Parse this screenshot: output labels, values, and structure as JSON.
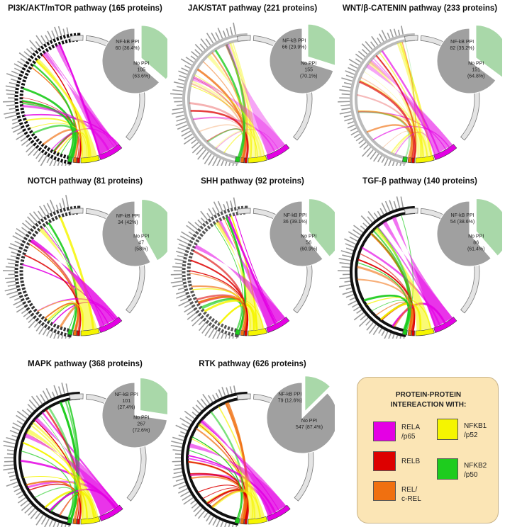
{
  "colors": {
    "RELA": "#e400e4",
    "RELB": "#dd0000",
    "REL": "#f07010",
    "NFKB1": "#f5f500",
    "NFKB2": "#1ecc1e",
    "nfkb_slice": "#a9d8a9",
    "noppi_slice": "#a0a0a0"
  },
  "panels": [
    {
      "title": "PI3K/AKT/mTOR pathway (165 proteins)",
      "ppi_label": "NF-kB PPI",
      "ppi_value": "60 (36.4%)",
      "no_label": "No PPI",
      "no_count": "105",
      "no_pct": "(63.6%)",
      "ppi_fraction": 0.364
    },
    {
      "title": "JAK/STAT pathway (221 proteins)",
      "ppi_label": "NF-kB PPI",
      "ppi_value": "66 (29.9%)",
      "no_label": "No PPI",
      "no_count": "155",
      "no_pct": "(70.1%)",
      "ppi_fraction": 0.299
    },
    {
      "title": "WNT/β-CATENIN pathway (233 proteins)",
      "ppi_label": "NF-kB PPI",
      "ppi_value": "82 (35.2%)",
      "no_label": "No PPI",
      "no_count": "151",
      "no_pct": "(64.8%)",
      "ppi_fraction": 0.352
    },
    {
      "title": "NOTCH pathway (81 proteins)",
      "ppi_label": "NF-kB PPI",
      "ppi_value": "34 (42%)",
      "no_label": "No PPI",
      "no_count": "47",
      "no_pct": "(58%)",
      "ppi_fraction": 0.42
    },
    {
      "title": "SHH pathway (92 proteins)",
      "ppi_label": "NF-kB PPI",
      "ppi_value": "36 (39.1%)",
      "no_label": "No PPI",
      "no_count": "56",
      "no_pct": "(60.9%)",
      "ppi_fraction": 0.391
    },
    {
      "title": "TGF-β pathway (140 proteins)",
      "ppi_label": "NF-kB PPI",
      "ppi_value": "54 (38.6%)",
      "no_label": "No PPI",
      "no_count": "86",
      "no_pct": "(61.4%)",
      "ppi_fraction": 0.386
    },
    {
      "title": "MAPK pathway (368 proteins)",
      "ppi_label": "NF-kB PPI",
      "ppi_value": "101",
      "ppi_value2": "(27.4%)",
      "no_label": "No PPI",
      "no_count": "267",
      "no_pct": "(72.6%)",
      "ppi_fraction": 0.274
    },
    {
      "title": "RTK pathway (626 proteins)",
      "ppi_label": "NF-kB PPI",
      "ppi_value": "79 (12.6%)",
      "no_label": "No PPI",
      "no_count": "547 (87.4%)",
      "no_pct": "",
      "ppi_fraction": 0.126
    }
  ],
  "legend": {
    "title_line1": "PROTEIN-PROTEIN",
    "title_line2": "INTEREACTION WITH:",
    "items": [
      {
        "key": "RELA",
        "label": "RELA\n/p65"
      },
      {
        "key": "RELB",
        "label": "RELB"
      },
      {
        "key": "REL",
        "label": "REL/\nc-REL"
      },
      {
        "key": "NFKB1",
        "label": "NFKB1\n/p52"
      },
      {
        "key": "NFKB2",
        "label": "NFKB2\n/p50"
      }
    ]
  }
}
